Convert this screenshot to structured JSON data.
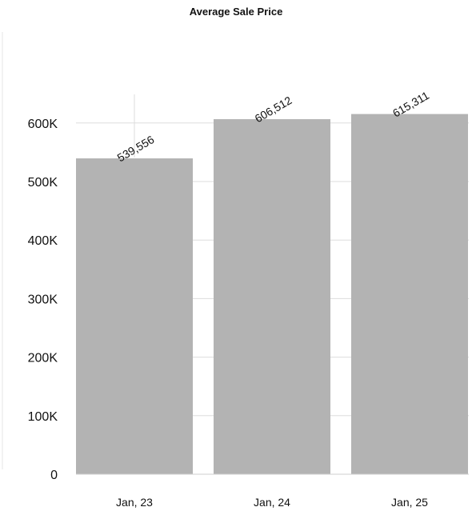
{
  "chart_data": {
    "type": "bar",
    "title": "Average Sale Price",
    "xlabel": "",
    "ylabel": "",
    "categories": [
      "Jan, 23",
      "Jan, 24",
      "Jan, 25"
    ],
    "values": [
      539556,
      606512,
      615311
    ],
    "value_labels": [
      "539,556",
      "606,512",
      "615,311"
    ],
    "yticks": [
      0,
      100000,
      200000,
      300000,
      400000,
      500000,
      600000
    ],
    "ytick_labels": [
      "0",
      "100K",
      "200K",
      "300K",
      "400K",
      "500K",
      "600K"
    ],
    "ylim": [
      0,
      690000
    ],
    "grid": true,
    "legend": "none",
    "bar_color": "#b3b3b3",
    "grid_color": "#dddddd"
  }
}
